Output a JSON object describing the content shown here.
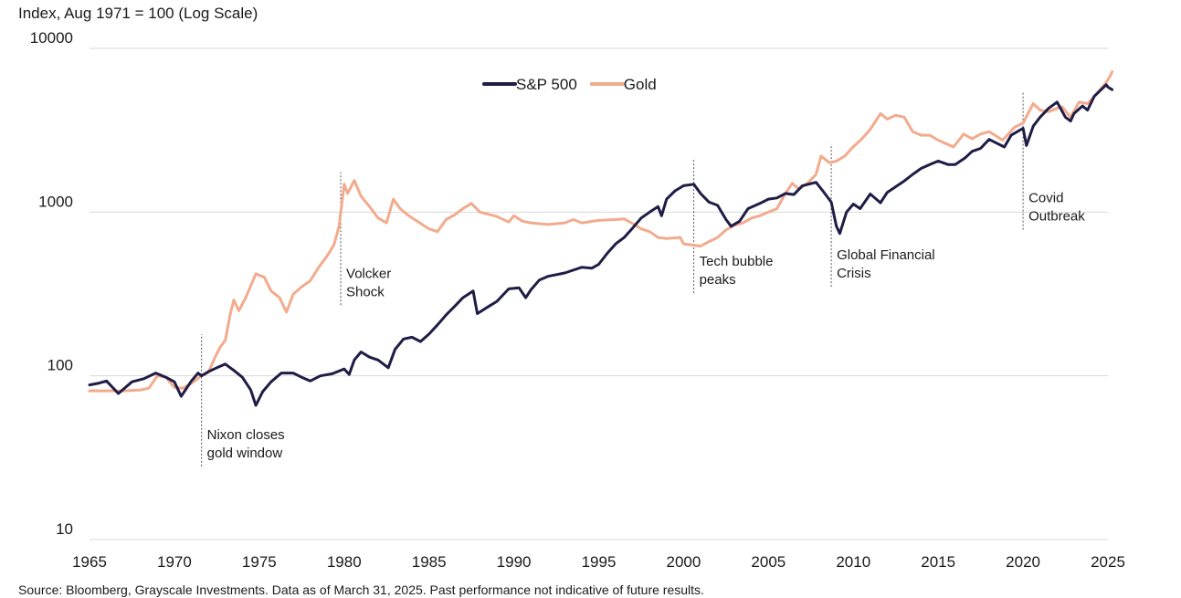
{
  "chart_data": {
    "type": "line",
    "title": "Index, Aug 1971 = 100 (Log Scale)",
    "xlabel": "",
    "ylabel": "Index, Aug 1971 = 100 (Log Scale)",
    "y_scale": "log",
    "xlim": [
      1965,
      2025
    ],
    "ylim": [
      10,
      10000
    ],
    "x_ticks": [
      "1965",
      "1970",
      "1975",
      "1980",
      "1985",
      "1990",
      "1995",
      "2000",
      "2005",
      "2010",
      "2015",
      "2020",
      "2025"
    ],
    "y_ticks": [
      "10",
      "100",
      "1000",
      "10000"
    ],
    "grid": "horizontal",
    "legend_position": "top-center",
    "colors": {
      "sp500": "#1f1d45",
      "gold": "#f2ab8e",
      "grid": "#d9d9d9",
      "annotation": "#555555"
    },
    "series": [
      {
        "name": "S&P 500",
        "color": "#1f1d45",
        "points": [
          [
            1965.0,
            88
          ],
          [
            1965.5,
            90
          ],
          [
            1966.0,
            93
          ],
          [
            1966.7,
            78
          ],
          [
            1967.5,
            92
          ],
          [
            1968.2,
            96
          ],
          [
            1968.9,
            104
          ],
          [
            1969.5,
            98
          ],
          [
            1970.0,
            92
          ],
          [
            1970.4,
            75
          ],
          [
            1971.0,
            93
          ],
          [
            1971.4,
            104
          ],
          [
            1971.6,
            100
          ],
          [
            1972.0,
            106
          ],
          [
            1972.5,
            112
          ],
          [
            1973.0,
            118
          ],
          [
            1973.5,
            108
          ],
          [
            1974.0,
            98
          ],
          [
            1974.5,
            82
          ],
          [
            1974.8,
            66
          ],
          [
            1975.2,
            80
          ],
          [
            1975.7,
            92
          ],
          [
            1976.3,
            104
          ],
          [
            1977.0,
            104
          ],
          [
            1977.5,
            98
          ],
          [
            1978.0,
            93
          ],
          [
            1978.6,
            100
          ],
          [
            1979.3,
            103
          ],
          [
            1980.0,
            110
          ],
          [
            1980.3,
            102
          ],
          [
            1980.6,
            125
          ],
          [
            1981.0,
            140
          ],
          [
            1981.5,
            130
          ],
          [
            1982.0,
            125
          ],
          [
            1982.6,
            112
          ],
          [
            1983.0,
            145
          ],
          [
            1983.5,
            168
          ],
          [
            1984.0,
            172
          ],
          [
            1984.5,
            162
          ],
          [
            1985.0,
            180
          ],
          [
            1985.5,
            205
          ],
          [
            1986.0,
            235
          ],
          [
            1986.5,
            265
          ],
          [
            1987.0,
            300
          ],
          [
            1987.6,
            330
          ],
          [
            1987.85,
            240
          ],
          [
            1988.5,
            265
          ],
          [
            1989.0,
            285
          ],
          [
            1989.7,
            340
          ],
          [
            1990.3,
            345
          ],
          [
            1990.7,
            300
          ],
          [
            1991.0,
            335
          ],
          [
            1991.5,
            385
          ],
          [
            1992.0,
            405
          ],
          [
            1993.0,
            425
          ],
          [
            1994.0,
            460
          ],
          [
            1994.6,
            455
          ],
          [
            1995.0,
            480
          ],
          [
            1995.5,
            560
          ],
          [
            1996.0,
            640
          ],
          [
            1996.5,
            700
          ],
          [
            1997.0,
            800
          ],
          [
            1997.5,
            920
          ],
          [
            1998.0,
            1000
          ],
          [
            1998.5,
            1080
          ],
          [
            1998.7,
            950
          ],
          [
            1999.0,
            1200
          ],
          [
            1999.5,
            1350
          ],
          [
            2000.0,
            1450
          ],
          [
            2000.6,
            1480
          ],
          [
            2001.0,
            1300
          ],
          [
            2001.5,
            1150
          ],
          [
            2002.0,
            1100
          ],
          [
            2002.5,
            900
          ],
          [
            2002.8,
            820
          ],
          [
            2003.3,
            880
          ],
          [
            2003.8,
            1050
          ],
          [
            2004.5,
            1130
          ],
          [
            2005.0,
            1200
          ],
          [
            2005.5,
            1220
          ],
          [
            2006.0,
            1300
          ],
          [
            2006.5,
            1280
          ],
          [
            2007.0,
            1450
          ],
          [
            2007.8,
            1520
          ],
          [
            2008.2,
            1350
          ],
          [
            2008.7,
            1150
          ],
          [
            2009.0,
            820
          ],
          [
            2009.2,
            740
          ],
          [
            2009.6,
            1000
          ],
          [
            2010.0,
            1120
          ],
          [
            2010.4,
            1050
          ],
          [
            2011.0,
            1290
          ],
          [
            2011.6,
            1140
          ],
          [
            2012.0,
            1320
          ],
          [
            2013.0,
            1550
          ],
          [
            2013.5,
            1700
          ],
          [
            2014.0,
            1850
          ],
          [
            2014.5,
            1950
          ],
          [
            2015.0,
            2050
          ],
          [
            2015.6,
            1950
          ],
          [
            2016.0,
            1950
          ],
          [
            2016.6,
            2150
          ],
          [
            2017.0,
            2350
          ],
          [
            2017.5,
            2450
          ],
          [
            2018.0,
            2780
          ],
          [
            2018.9,
            2500
          ],
          [
            2019.3,
            2950
          ],
          [
            2020.0,
            3250
          ],
          [
            2020.2,
            2550
          ],
          [
            2020.6,
            3350
          ],
          [
            2021.0,
            3800
          ],
          [
            2021.5,
            4300
          ],
          [
            2022.0,
            4700
          ],
          [
            2022.5,
            3800
          ],
          [
            2022.8,
            3600
          ],
          [
            2023.0,
            4000
          ],
          [
            2023.5,
            4450
          ],
          [
            2023.8,
            4200
          ],
          [
            2024.2,
            5100
          ],
          [
            2024.6,
            5600
          ],
          [
            2024.9,
            6000
          ],
          [
            2025.0,
            5800
          ],
          [
            2025.25,
            5600
          ]
        ]
      },
      {
        "name": "Gold",
        "color": "#f2ab8e",
        "points": [
          [
            1965.0,
            81
          ],
          [
            1966.0,
            81
          ],
          [
            1967.0,
            81
          ],
          [
            1968.0,
            82
          ],
          [
            1968.5,
            84
          ],
          [
            1969.0,
            100
          ],
          [
            1969.5,
            98
          ],
          [
            1970.0,
            85
          ],
          [
            1970.5,
            84
          ],
          [
            1971.0,
            90
          ],
          [
            1971.6,
            100
          ],
          [
            1972.0,
            105
          ],
          [
            1972.4,
            130
          ],
          [
            1972.7,
            150
          ],
          [
            1973.0,
            165
          ],
          [
            1973.3,
            240
          ],
          [
            1973.5,
            290
          ],
          [
            1973.8,
            250
          ],
          [
            1974.2,
            300
          ],
          [
            1974.8,
            420
          ],
          [
            1975.3,
            400
          ],
          [
            1975.7,
            330
          ],
          [
            1976.2,
            300
          ],
          [
            1976.6,
            245
          ],
          [
            1977.0,
            315
          ],
          [
            1977.5,
            350
          ],
          [
            1978.0,
            380
          ],
          [
            1978.5,
            460
          ],
          [
            1979.0,
            540
          ],
          [
            1979.4,
            630
          ],
          [
            1979.7,
            820
          ],
          [
            1980.0,
            1480
          ],
          [
            1980.2,
            1300
          ],
          [
            1980.6,
            1560
          ],
          [
            1981.0,
            1250
          ],
          [
            1981.5,
            1080
          ],
          [
            1982.0,
            920
          ],
          [
            1982.5,
            860
          ],
          [
            1982.9,
            1200
          ],
          [
            1983.3,
            1050
          ],
          [
            1983.8,
            950
          ],
          [
            1984.3,
            880
          ],
          [
            1985.0,
            790
          ],
          [
            1985.5,
            760
          ],
          [
            1986.0,
            900
          ],
          [
            1986.5,
            960
          ],
          [
            1987.0,
            1050
          ],
          [
            1987.5,
            1130
          ],
          [
            1988.0,
            1000
          ],
          [
            1988.5,
            970
          ],
          [
            1989.0,
            940
          ],
          [
            1989.7,
            870
          ],
          [
            1990.0,
            950
          ],
          [
            1990.5,
            880
          ],
          [
            1991.0,
            860
          ],
          [
            1992.0,
            840
          ],
          [
            1993.0,
            860
          ],
          [
            1993.5,
            900
          ],
          [
            1994.0,
            860
          ],
          [
            1995.0,
            890
          ],
          [
            1996.0,
            900
          ],
          [
            1996.5,
            910
          ],
          [
            1997.0,
            850
          ],
          [
            1997.5,
            790
          ],
          [
            1998.0,
            760
          ],
          [
            1998.5,
            700
          ],
          [
            1999.0,
            690
          ],
          [
            1999.8,
            700
          ],
          [
            2000.0,
            640
          ],
          [
            2001.0,
            620
          ],
          [
            2001.5,
            660
          ],
          [
            2002.0,
            700
          ],
          [
            2002.5,
            780
          ],
          [
            2003.0,
            830
          ],
          [
            2003.5,
            860
          ],
          [
            2004.0,
            920
          ],
          [
            2004.5,
            950
          ],
          [
            2005.0,
            1000
          ],
          [
            2005.5,
            1050
          ],
          [
            2006.0,
            1300
          ],
          [
            2006.4,
            1500
          ],
          [
            2006.8,
            1380
          ],
          [
            2007.3,
            1500
          ],
          [
            2007.8,
            1700
          ],
          [
            2008.1,
            2200
          ],
          [
            2008.6,
            2000
          ],
          [
            2009.0,
            2050
          ],
          [
            2009.5,
            2200
          ],
          [
            2009.9,
            2450
          ],
          [
            2010.5,
            2800
          ],
          [
            2011.0,
            3200
          ],
          [
            2011.6,
            4000
          ],
          [
            2012.0,
            3700
          ],
          [
            2012.5,
            3900
          ],
          [
            2013.0,
            3800
          ],
          [
            2013.5,
            3100
          ],
          [
            2014.0,
            2950
          ],
          [
            2014.5,
            2950
          ],
          [
            2015.0,
            2750
          ],
          [
            2015.9,
            2500
          ],
          [
            2016.5,
            3000
          ],
          [
            2017.0,
            2800
          ],
          [
            2017.5,
            3000
          ],
          [
            2018.0,
            3100
          ],
          [
            2018.8,
            2750
          ],
          [
            2019.5,
            3300
          ],
          [
            2020.0,
            3500
          ],
          [
            2020.6,
            4600
          ],
          [
            2021.0,
            4200
          ],
          [
            2021.5,
            4100
          ],
          [
            2022.0,
            4300
          ],
          [
            2022.3,
            4400
          ],
          [
            2022.8,
            3800
          ],
          [
            2023.3,
            4700
          ],
          [
            2023.8,
            4600
          ],
          [
            2024.2,
            5100
          ],
          [
            2024.6,
            5700
          ],
          [
            2024.9,
            6200
          ],
          [
            2025.1,
            6700
          ],
          [
            2025.25,
            7200
          ]
        ]
      }
    ],
    "annotations": [
      {
        "label_lines": [
          "Nixon closes",
          "gold window"
        ],
        "x": 1971.6,
        "line_from": 28,
        "line_to": 180
      },
      {
        "label_lines": [
          "Volcker",
          "Shock"
        ],
        "x": 1979.8,
        "line_from": 270,
        "line_to": 1750
      },
      {
        "label_lines": [
          "Tech bubble",
          "peaks"
        ],
        "x": 2000.6,
        "line_from": 320,
        "line_to": 2100
      },
      {
        "label_lines": [
          "Global Financial",
          "Crisis"
        ],
        "x": 2008.7,
        "line_from": 350,
        "line_to": 2600
      },
      {
        "label_lines": [
          "Covid",
          "Outbreak"
        ],
        "x": 2020.0,
        "line_from": 780,
        "line_to": 5400
      }
    ]
  },
  "footer": {
    "source": "Source: Bloomberg, Grayscale Investments. Data as of March 31, 2025. Past performance not indicative of future results."
  }
}
